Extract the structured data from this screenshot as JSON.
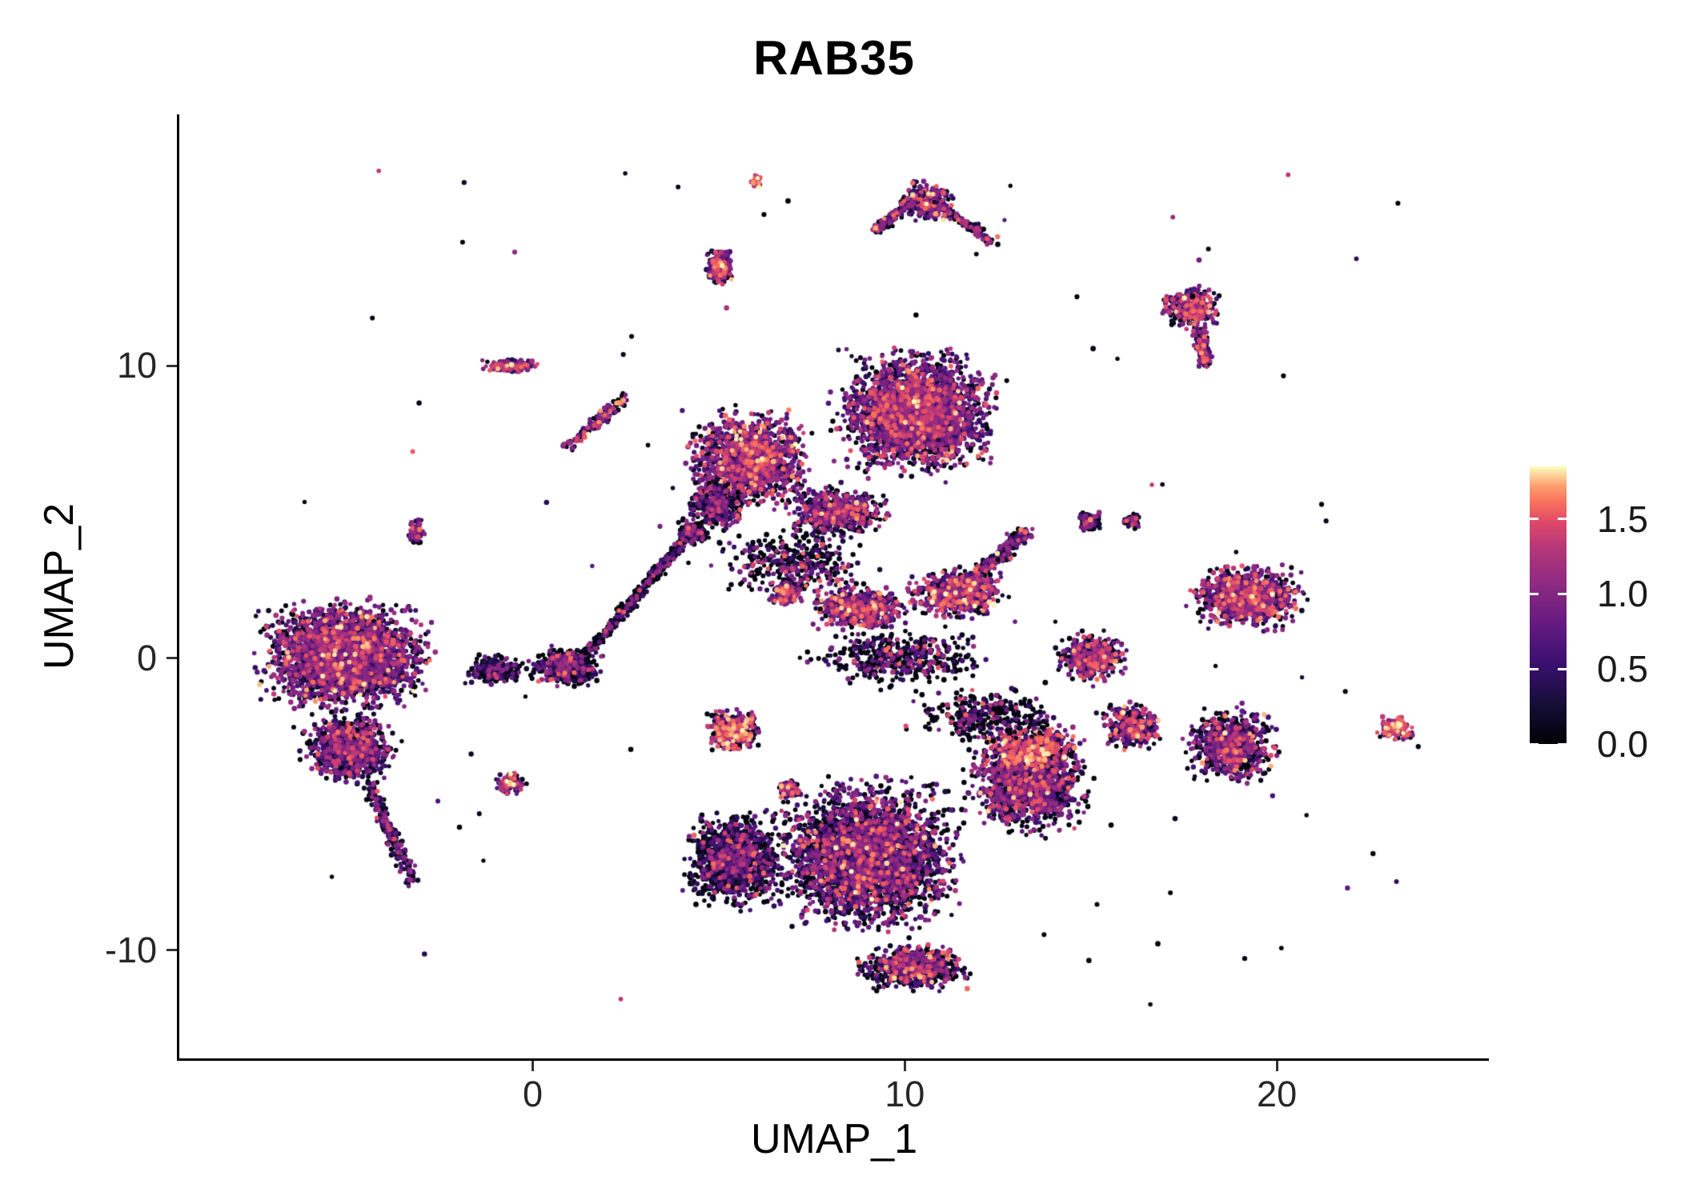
{
  "chart_data": {
    "type": "scatter",
    "title": "RAB35",
    "xlabel": "UMAP_1",
    "ylabel": "UMAP_2",
    "xlim": [
      -9.5,
      25.7
    ],
    "ylim": [
      -13.7,
      18.6
    ],
    "grid": false,
    "x_ticks": [
      {
        "label": "0",
        "value": 0
      },
      {
        "label": "10",
        "value": 10
      },
      {
        "label": "20",
        "value": 20
      }
    ],
    "y_ticks": [
      {
        "label": "10",
        "value": 10
      },
      {
        "label": "0",
        "value": 0
      },
      {
        "label": "-10",
        "value": -10
      }
    ],
    "legend": {
      "position": "right",
      "range": [
        0,
        1.85
      ],
      "ticks": [
        {
          "label": "1.5",
          "value": 1.5
        },
        {
          "label": "1.0",
          "value": 1.0
        },
        {
          "label": "0.5",
          "value": 0.5
        },
        {
          "label": "0.0",
          "value": 0.0
        }
      ],
      "colormap_name": "magma",
      "colormap_stops": [
        [
          0,
          "#000004"
        ],
        [
          0.14,
          "#150e37"
        ],
        [
          0.29,
          "#3b0f70"
        ],
        [
          0.43,
          "#641a80"
        ],
        [
          0.57,
          "#8c2981"
        ],
        [
          0.71,
          "#b73779"
        ],
        [
          0.8,
          "#de4968"
        ],
        [
          0.87,
          "#f7705c"
        ],
        [
          0.93,
          "#fe9f6d"
        ],
        [
          1,
          "#fcfdbf"
        ]
      ]
    },
    "point_radius_px": 3,
    "seed": 42,
    "expression_bins": [
      [
        0,
        0.12
      ],
      [
        0.18,
        0.48
      ],
      [
        0.52,
        1.15
      ],
      [
        1.2,
        1.62
      ],
      [
        1.65,
        1.85
      ]
    ],
    "clusters": [
      {
        "name": "left-main",
        "shape": "blob",
        "cx": -5.1,
        "cy": 0.1,
        "rx": 2.6,
        "ry": 2.2,
        "n": 2800,
        "expr": [
          0.26,
          0.16,
          0.48,
          0.09,
          0.01
        ]
      },
      {
        "name": "left-lower-lobe",
        "shape": "blob",
        "cx": -4.9,
        "cy": -3.1,
        "rx": 1.5,
        "ry": 1.4,
        "n": 800,
        "expr": [
          0.35,
          0.18,
          0.4,
          0.07,
          0
        ]
      },
      {
        "name": "left-tail",
        "shape": "streak",
        "x1": -4.4,
        "y1": -4.3,
        "x2": -3.2,
        "y2": -7.7,
        "w": 0.3,
        "n": 220,
        "expr": [
          0.45,
          0.2,
          0.32,
          0.03,
          0
        ]
      },
      {
        "name": "left-right-fringe",
        "shape": "blob",
        "cx": -1.0,
        "cy": -0.4,
        "rx": 0.9,
        "ry": 0.6,
        "n": 260,
        "expr": [
          0.7,
          0.12,
          0.16,
          0.02,
          0
        ]
      },
      {
        "name": "center-left-blob",
        "shape": "blob",
        "cx": 0.9,
        "cy": -0.3,
        "rx": 1.1,
        "ry": 0.8,
        "n": 500,
        "expr": [
          0.55,
          0.16,
          0.25,
          0.04,
          0
        ]
      },
      {
        "name": "diagonal-streak",
        "shape": "streak",
        "x1": 1.5,
        "y1": 0.2,
        "x2": 4.4,
        "y2": 4.5,
        "w": 0.22,
        "n": 400,
        "expr": [
          0.68,
          0.13,
          0.17,
          0.02,
          0
        ]
      },
      {
        "name": "streak-top-knot",
        "shape": "blob",
        "cx": 4.3,
        "cy": 4.3,
        "rx": 0.5,
        "ry": 0.5,
        "n": 180,
        "expr": [
          0.62,
          0.15,
          0.2,
          0.03,
          0
        ]
      },
      {
        "name": "top-main",
        "shape": "blob",
        "cx": 10.3,
        "cy": 8.4,
        "rx": 2.5,
        "ry": 2.5,
        "n": 2900,
        "expr": [
          0.24,
          0.14,
          0.5,
          0.11,
          0.01
        ]
      },
      {
        "name": "top-left-arm",
        "shape": "blob",
        "cx": 5.8,
        "cy": 6.8,
        "rx": 1.9,
        "ry": 2.0,
        "n": 1500,
        "expr": [
          0.22,
          0.13,
          0.48,
          0.15,
          0.02
        ]
      },
      {
        "name": "top-left-dark-edge",
        "shape": "blob",
        "cx": 4.9,
        "cy": 5.2,
        "rx": 0.9,
        "ry": 1.0,
        "n": 350,
        "expr": [
          0.5,
          0.18,
          0.27,
          0.05,
          0
        ]
      },
      {
        "name": "top-lower-lip",
        "shape": "blob",
        "cx": 8.2,
        "cy": 5.0,
        "rx": 1.6,
        "ry": 1.0,
        "n": 600,
        "expr": [
          0.3,
          0.16,
          0.44,
          0.09,
          0.01
        ]
      },
      {
        "name": "top-below-spray",
        "shape": "blob",
        "cx": 7.0,
        "cy": 3.2,
        "rx": 2.4,
        "ry": 1.4,
        "n": 380,
        "expr": [
          0.6,
          0.15,
          0.2,
          0.05,
          0
        ]
      },
      {
        "name": "mid-band-left",
        "shape": "blob",
        "cx": 8.8,
        "cy": 1.7,
        "rx": 1.5,
        "ry": 0.9,
        "n": 600,
        "expr": [
          0.24,
          0.13,
          0.45,
          0.16,
          0.02
        ]
      },
      {
        "name": "mid-band-right",
        "shape": "blob",
        "cx": 11.4,
        "cy": 2.2,
        "rx": 1.5,
        "ry": 1.0,
        "n": 650,
        "expr": [
          0.24,
          0.13,
          0.45,
          0.16,
          0.02
        ]
      },
      {
        "name": "mid-band-beak",
        "shape": "streak",
        "x1": 11.8,
        "y1": 2.6,
        "x2": 13.3,
        "y2": 4.4,
        "w": 0.35,
        "n": 180,
        "expr": [
          0.3,
          0.15,
          0.4,
          0.13,
          0.02
        ]
      },
      {
        "name": "mid-small-knot",
        "shape": "blob",
        "cx": 6.8,
        "cy": 2.2,
        "rx": 0.5,
        "ry": 0.5,
        "n": 150,
        "expr": [
          0.25,
          0.13,
          0.42,
          0.17,
          0.03
        ]
      },
      {
        "name": "mid-scatter",
        "shape": "blob",
        "cx": 9.8,
        "cy": 0.0,
        "rx": 3.0,
        "ry": 1.2,
        "n": 420,
        "expr": [
          0.65,
          0.13,
          0.18,
          0.04,
          0
        ]
      },
      {
        "name": "bottom-left-dark-lobe",
        "shape": "blob",
        "cx": 5.4,
        "cy": -6.9,
        "rx": 1.5,
        "ry": 1.9,
        "n": 1300,
        "expr": [
          0.6,
          0.17,
          0.19,
          0.04,
          0
        ]
      },
      {
        "name": "bottom-main",
        "shape": "blob",
        "cx": 9.0,
        "cy": -6.8,
        "rx": 2.9,
        "ry": 3.0,
        "n": 3200,
        "expr": [
          0.36,
          0.17,
          0.39,
          0.07,
          0.01
        ]
      },
      {
        "name": "bottom-right-lobe",
        "shape": "blob",
        "cx": 13.3,
        "cy": -4.2,
        "rx": 1.9,
        "ry": 2.1,
        "n": 1500,
        "expr": [
          0.3,
          0.15,
          0.45,
          0.09,
          0.01
        ]
      },
      {
        "name": "bottom-hot-patch",
        "shape": "blob",
        "cx": 13.4,
        "cy": -3.2,
        "rx": 1.4,
        "ry": 1.0,
        "n": 500,
        "expr": [
          0.12,
          0.08,
          0.3,
          0.43,
          0.07
        ]
      },
      {
        "name": "bottom-tail",
        "shape": "blob",
        "cx": 10.2,
        "cy": -10.6,
        "rx": 1.7,
        "ry": 0.9,
        "n": 650,
        "expr": [
          0.38,
          0.17,
          0.33,
          0.11,
          0.01
        ]
      },
      {
        "name": "bottom-upper-spray",
        "shape": "blob",
        "cx": 12.2,
        "cy": -2.0,
        "rx": 2.4,
        "ry": 1.1,
        "n": 320,
        "expr": [
          0.68,
          0.12,
          0.16,
          0.04,
          0
        ]
      },
      {
        "name": "right-mid-small",
        "shape": "blob",
        "cx": 15.0,
        "cy": 0.0,
        "rx": 1.1,
        "ry": 1.0,
        "n": 420,
        "expr": [
          0.33,
          0.15,
          0.38,
          0.13,
          0.01
        ]
      },
      {
        "name": "right-mid-large",
        "shape": "blob",
        "cx": 19.2,
        "cy": 2.1,
        "rx": 1.8,
        "ry": 1.3,
        "n": 950,
        "expr": [
          0.25,
          0.13,
          0.44,
          0.16,
          0.02
        ]
      },
      {
        "name": "right-lower",
        "shape": "blob",
        "cx": 18.8,
        "cy": -3.0,
        "rx": 1.4,
        "ry": 1.5,
        "n": 750,
        "expr": [
          0.33,
          0.16,
          0.42,
          0.08,
          0.01
        ]
      },
      {
        "name": "right-hook-hot",
        "shape": "blob",
        "cx": 16.1,
        "cy": -2.3,
        "rx": 1.0,
        "ry": 0.9,
        "n": 300,
        "expr": [
          0.28,
          0.12,
          0.33,
          0.23,
          0.04
        ]
      },
      {
        "name": "far-right-small",
        "shape": "blob",
        "cx": 23.2,
        "cy": -2.4,
        "rx": 0.6,
        "ry": 0.5,
        "n": 160,
        "expr": [
          0.15,
          0.1,
          0.35,
          0.34,
          0.06
        ]
      },
      {
        "name": "upper-right-blob",
        "shape": "blob",
        "cx": 17.7,
        "cy": 12.0,
        "rx": 0.9,
        "ry": 0.8,
        "n": 300,
        "expr": [
          0.22,
          0.12,
          0.45,
          0.18,
          0.03
        ]
      },
      {
        "name": "upper-right-tail",
        "shape": "streak",
        "x1": 17.9,
        "y1": 11.2,
        "x2": 18.1,
        "y2": 10.0,
        "w": 0.25,
        "n": 120,
        "expr": [
          0.25,
          0.13,
          0.44,
          0.16,
          0.02
        ]
      },
      {
        "name": "upper-mid-pair-a",
        "shape": "blob",
        "cx": 15.0,
        "cy": 4.7,
        "rx": 0.45,
        "ry": 0.45,
        "n": 90,
        "expr": [
          0.45,
          0.15,
          0.3,
          0.09,
          0.01
        ]
      },
      {
        "name": "upper-mid-pair-b",
        "shape": "blob",
        "cx": 16.1,
        "cy": 4.7,
        "rx": 0.3,
        "ry": 0.3,
        "n": 50,
        "expr": [
          0.45,
          0.15,
          0.3,
          0.09,
          0.01
        ]
      },
      {
        "name": "top-flag-blob",
        "shape": "blob",
        "cx": 10.6,
        "cy": 15.6,
        "rx": 0.8,
        "ry": 0.8,
        "n": 260,
        "expr": [
          0.25,
          0.13,
          0.42,
          0.17,
          0.03
        ]
      },
      {
        "name": "top-flag-left-arm",
        "shape": "streak",
        "x1": 9.2,
        "y1": 14.6,
        "x2": 10.4,
        "y2": 15.9,
        "w": 0.25,
        "n": 130,
        "expr": [
          0.35,
          0.15,
          0.38,
          0.11,
          0.01
        ]
      },
      {
        "name": "top-flag-right-arm",
        "shape": "streak",
        "x1": 10.9,
        "y1": 15.5,
        "x2": 12.4,
        "y2": 14.2,
        "w": 0.22,
        "n": 120,
        "expr": [
          0.35,
          0.15,
          0.38,
          0.11,
          0.01
        ]
      },
      {
        "name": "top-small-cluster",
        "shape": "blob",
        "cx": 5.0,
        "cy": 13.4,
        "rx": 0.45,
        "ry": 0.75,
        "n": 220,
        "expr": [
          0.22,
          0.12,
          0.42,
          0.2,
          0.04
        ]
      },
      {
        "name": "top-tiny-dot",
        "shape": "blob",
        "cx": 6.0,
        "cy": 16.3,
        "rx": 0.18,
        "ry": 0.3,
        "n": 30,
        "expr": [
          0.05,
          0.05,
          0.3,
          0.5,
          0.1
        ]
      },
      {
        "name": "upper-left-small",
        "shape": "blob",
        "cx": -0.6,
        "cy": 10.0,
        "rx": 0.9,
        "ry": 0.3,
        "n": 140,
        "expr": [
          0.2,
          0.12,
          0.45,
          0.2,
          0.03
        ]
      },
      {
        "name": "upper-left-streak",
        "shape": "streak",
        "x1": 0.9,
        "y1": 7.2,
        "x2": 2.5,
        "y2": 8.9,
        "w": 0.25,
        "n": 140,
        "expr": [
          0.25,
          0.13,
          0.4,
          0.19,
          0.03
        ]
      },
      {
        "name": "left-upper-tiny",
        "shape": "blob",
        "cx": -3.1,
        "cy": 4.3,
        "rx": 0.3,
        "ry": 0.55,
        "n": 70,
        "expr": [
          0.3,
          0.15,
          0.45,
          0.1,
          0
        ]
      },
      {
        "name": "mid-left-hot-small",
        "shape": "blob",
        "cx": 5.4,
        "cy": -2.5,
        "rx": 0.8,
        "ry": 0.9,
        "n": 380,
        "expr": [
          0.2,
          0.1,
          0.32,
          0.31,
          0.07
        ]
      },
      {
        "name": "mid-left-tiny",
        "shape": "blob",
        "cx": 6.9,
        "cy": -4.5,
        "rx": 0.4,
        "ry": 0.4,
        "n": 90,
        "expr": [
          0.25,
          0.13,
          0.42,
          0.17,
          0.03
        ]
      },
      {
        "name": "left-center-tiny",
        "shape": "blob",
        "cx": -0.6,
        "cy": -4.3,
        "rx": 0.5,
        "ry": 0.5,
        "n": 110,
        "expr": [
          0.28,
          0.12,
          0.36,
          0.2,
          0.04
        ]
      },
      {
        "name": "stray-noise",
        "shape": "uniform",
        "x1": -8,
        "y1": -12,
        "x2": 24,
        "y2": 17,
        "n": 90,
        "expr": [
          0.7,
          0.1,
          0.15,
          0.05,
          0
        ]
      }
    ]
  }
}
